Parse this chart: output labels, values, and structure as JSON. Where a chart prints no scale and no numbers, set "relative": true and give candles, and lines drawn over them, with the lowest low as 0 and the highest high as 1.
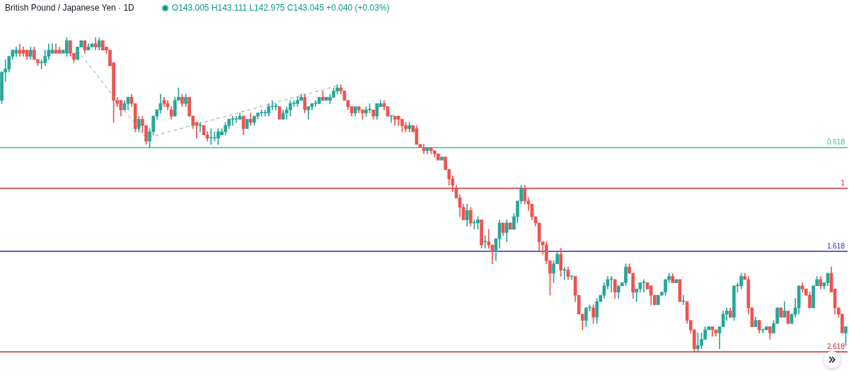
{
  "chart_data": {
    "type": "candlestick",
    "title": "British Pound / Japanese Yen · 1D",
    "subtitle": "O143.005 H143.111 L142.975 C143.045 +0.040 (+0.03%)",
    "relative": true,
    "categories": [
      null,
      null,
      null,
      null,
      null,
      null,
      null,
      null,
      null,
      null,
      null,
      null,
      null,
      null,
      null,
      null,
      null,
      null,
      null,
      null,
      null,
      null,
      null,
      null,
      null,
      null,
      null,
      null,
      null,
      null,
      null,
      null,
      null,
      null,
      null,
      null,
      null,
      null,
      null,
      null,
      null,
      null,
      null,
      null,
      null,
      null,
      null,
      null,
      null,
      null,
      null,
      null,
      null,
      null,
      null,
      null,
      null,
      null,
      null,
      null,
      null,
      null,
      null,
      null,
      null,
      null,
      null,
      null,
      null,
      null,
      null,
      null,
      null,
      null,
      null,
      null,
      null,
      null,
      null,
      null,
      null,
      null,
      null,
      null,
      null,
      null,
      null,
      null,
      null,
      null,
      null,
      null,
      null,
      null,
      null,
      null,
      null,
      null,
      null,
      null,
      null,
      null,
      null,
      null,
      null,
      null,
      null,
      null,
      null,
      null,
      null,
      null,
      null,
      null,
      null,
      null,
      null,
      null,
      null,
      null,
      null,
      null,
      null,
      null,
      null,
      null,
      null,
      null,
      null,
      null,
      null,
      null,
      null,
      null,
      null,
      null,
      null,
      null,
      null,
      null,
      null,
      null,
      null,
      null,
      null,
      null,
      null,
      null,
      null,
      null,
      null,
      null,
      null,
      null,
      null,
      null,
      null,
      null,
      null,
      null,
      null,
      null,
      null,
      null,
      null,
      null,
      null,
      null,
      null,
      null,
      null,
      null,
      null,
      null,
      null,
      null,
      null,
      null,
      null,
      null,
      null,
      null,
      null,
      null,
      null,
      null,
      null,
      null,
      null,
      null,
      null,
      null,
      null,
      null,
      null,
      null,
      null,
      null,
      null,
      null,
      null,
      null,
      null,
      null,
      null,
      null,
      null,
      null,
      null,
      null,
      null,
      null,
      null,
      null,
      null,
      null,
      null,
      null,
      null,
      null,
      null,
      null,
      null,
      null,
      null,
      null,
      null,
      null,
      null,
      null,
      null,
      null,
      null,
      null,
      null
    ],
    "ohlc": [
      [
        0.8,
        0.89,
        0.79,
        0.89
      ],
      [
        0.89,
        0.93,
        0.86,
        0.9
      ],
      [
        0.9,
        0.94,
        0.89,
        0.94
      ],
      [
        0.94,
        0.96,
        0.93,
        0.96
      ],
      [
        0.95,
        0.97,
        0.94,
        0.96
      ],
      [
        0.96,
        0.98,
        0.94,
        0.95
      ],
      [
        0.96,
        0.97,
        0.94,
        0.95
      ],
      [
        0.96,
        0.96,
        0.93,
        0.94
      ],
      [
        0.94,
        0.97,
        0.93,
        0.96
      ],
      [
        0.96,
        0.97,
        0.93,
        0.93
      ],
      [
        0.93,
        0.93,
        0.91,
        0.92
      ],
      [
        0.92,
        0.93,
        0.9,
        0.92
      ],
      [
        0.92,
        0.96,
        0.91,
        0.94
      ],
      [
        0.94,
        0.98,
        0.93,
        0.96
      ],
      [
        0.95,
        0.98,
        0.95,
        0.96
      ],
      [
        0.96,
        0.98,
        0.95,
        0.95
      ],
      [
        0.96,
        0.97,
        0.95,
        0.95
      ],
      [
        0.95,
        0.96,
        0.95,
        0.96
      ],
      [
        0.95,
        1,
        0.94,
        0.99
      ],
      [
        0.99,
        0.99,
        0.94,
        0.95
      ],
      [
        0.95,
        0.95,
        0.92,
        0.93
      ],
      [
        0.93,
        0.97,
        0.93,
        0.97
      ],
      [
        0.97,
        0.99,
        0.97,
        0.99
      ],
      [
        0.99,
        0.99,
        0.95,
        0.96
      ],
      [
        0.96,
        0.98,
        0.96,
        0.97
      ],
      [
        0.97,
        0.98,
        0.97,
        0.98
      ],
      [
        0.98,
        1,
        0.96,
        0.97
      ],
      [
        0.97,
        1,
        0.96,
        0.99
      ],
      [
        0.99,
        0.99,
        0.96,
        0.96
      ],
      [
        0.97,
        0.97,
        0.95,
        0.96
      ],
      [
        0.96,
        0.96,
        0.91,
        0.91
      ],
      [
        0.92,
        0.92,
        0.73,
        0.8
      ],
      [
        0.8,
        0.81,
        0.78,
        0.79
      ],
      [
        0.8,
        0.8,
        0.75,
        0.77
      ],
      [
        0.77,
        0.8,
        0.77,
        0.79
      ],
      [
        0.79,
        0.81,
        0.77,
        0.81
      ],
      [
        0.81,
        0.82,
        0.78,
        0.79
      ],
      [
        0.79,
        0.79,
        0.7,
        0.71
      ],
      [
        0.71,
        0.75,
        0.7,
        0.74
      ],
      [
        0.74,
        0.75,
        0.7,
        0.72
      ],
      [
        0.72,
        0.72,
        0.66,
        0.67
      ],
      [
        0.67,
        0.71,
        0.65,
        0.7
      ],
      [
        0.7,
        0.75,
        0.69,
        0.75
      ],
      [
        0.75,
        0.77,
        0.74,
        0.77
      ],
      [
        0.77,
        0.82,
        0.76,
        0.79
      ],
      [
        0.8,
        0.81,
        0.78,
        0.79
      ],
      [
        0.79,
        0.8,
        0.77,
        0.78
      ],
      [
        0.77,
        0.78,
        0.74,
        0.75
      ],
      [
        0.75,
        0.81,
        0.75,
        0.8
      ],
      [
        0.8,
        0.84,
        0.8,
        0.81
      ],
      [
        0.81,
        0.82,
        0.78,
        0.79
      ],
      [
        0.79,
        0.82,
        0.78,
        0.81
      ],
      [
        0.81,
        0.81,
        0.75,
        0.75
      ],
      [
        0.75,
        0.75,
        0.71,
        0.72
      ],
      [
        0.73,
        0.73,
        0.68,
        0.72
      ],
      [
        0.72,
        0.73,
        0.7,
        0.72
      ],
      [
        0.72,
        0.72,
        0.69,
        0.69
      ],
      [
        0.69,
        0.7,
        0.67,
        0.68
      ],
      [
        0.68,
        0.71,
        0.66,
        0.68
      ],
      [
        0.68,
        0.7,
        0.67,
        0.68
      ],
      [
        0.68,
        0.71,
        0.66,
        0.7
      ],
      [
        0.69,
        0.71,
        0.69,
        0.7
      ],
      [
        0.7,
        0.73,
        0.69,
        0.72
      ],
      [
        0.72,
        0.74,
        0.71,
        0.74
      ],
      [
        0.74,
        0.75,
        0.72,
        0.74
      ],
      [
        0.74,
        0.75,
        0.73,
        0.74
      ],
      [
        0.74,
        0.76,
        0.74,
        0.75
      ],
      [
        0.75,
        0.75,
        0.69,
        0.71
      ],
      [
        0.71,
        0.74,
        0.71,
        0.74
      ],
      [
        0.74,
        0.76,
        0.72,
        0.73
      ],
      [
        0.73,
        0.75,
        0.72,
        0.75
      ],
      [
        0.75,
        0.76,
        0.74,
        0.76
      ],
      [
        0.76,
        0.77,
        0.75,
        0.76
      ],
      [
        0.76,
        0.77,
        0.75,
        0.76
      ],
      [
        0.76,
        0.79,
        0.75,
        0.78
      ],
      [
        0.78,
        0.8,
        0.77,
        0.78
      ],
      [
        0.78,
        0.79,
        0.77,
        0.78
      ],
      [
        0.78,
        0.78,
        0.74,
        0.74
      ],
      [
        0.74,
        0.77,
        0.74,
        0.76
      ],
      [
        0.76,
        0.78,
        0.74,
        0.77
      ],
      [
        0.77,
        0.8,
        0.75,
        0.79
      ],
      [
        0.79,
        0.8,
        0.78,
        0.79
      ],
      [
        0.79,
        0.81,
        0.78,
        0.8
      ],
      [
        0.8,
        0.82,
        0.8,
        0.81
      ],
      [
        0.81,
        0.82,
        0.76,
        0.77
      ],
      [
        0.77,
        0.78,
        0.74,
        0.78
      ],
      [
        0.78,
        0.79,
        0.77,
        0.79
      ],
      [
        0.79,
        0.8,
        0.78,
        0.79
      ],
      [
        0.79,
        0.81,
        0.79,
        0.81
      ],
      [
        0.81,
        0.83,
        0.8,
        0.8
      ],
      [
        0.8,
        0.81,
        0.8,
        0.81
      ],
      [
        0.8,
        0.82,
        0.79,
        0.81
      ],
      [
        0.81,
        0.84,
        0.81,
        0.83
      ],
      [
        0.83,
        0.85,
        0.82,
        0.84
      ],
      [
        0.84,
        0.85,
        0.82,
        0.83
      ],
      [
        0.83,
        0.83,
        0.8,
        0.8
      ],
      [
        0.8,
        0.8,
        0.77,
        0.78
      ],
      [
        0.78,
        0.78,
        0.75,
        0.76
      ],
      [
        0.76,
        0.78,
        0.75,
        0.78
      ],
      [
        0.78,
        0.78,
        0.76,
        0.77
      ],
      [
        0.77,
        0.77,
        0.74,
        0.76
      ],
      [
        0.76,
        0.78,
        0.75,
        0.77
      ],
      [
        0.77,
        0.79,
        0.76,
        0.77
      ],
      [
        0.77,
        0.77,
        0.74,
        0.75
      ],
      [
        0.75,
        0.79,
        0.74,
        0.79
      ],
      [
        0.78,
        0.8,
        0.78,
        0.79
      ],
      [
        0.79,
        0.8,
        0.77,
        0.78
      ],
      [
        0.78,
        0.78,
        0.75,
        0.75
      ],
      [
        0.75,
        0.75,
        0.73,
        0.75
      ],
      [
        0.75,
        0.75,
        0.72,
        0.74
      ],
      [
        0.75,
        0.75,
        0.72,
        0.74
      ],
      [
        0.74,
        0.74,
        0.7,
        0.72
      ],
      [
        0.72,
        0.73,
        0.7,
        0.71
      ],
      [
        0.71,
        0.73,
        0.7,
        0.72
      ],
      [
        0.72,
        0.72,
        0.7,
        0.7
      ],
      [
        0.71,
        0.72,
        0.66,
        0.66
      ],
      [
        0.66,
        0.66,
        0.65,
        0.65
      ],
      [
        0.65,
        0.66,
        0.63,
        0.64
      ],
      [
        0.64,
        0.65,
        0.63,
        0.65
      ],
      [
        0.65,
        0.65,
        0.63,
        0.64
      ],
      [
        0.64,
        0.64,
        0.62,
        0.63
      ],
      [
        0.63,
        0.63,
        0.61,
        0.61
      ],
      [
        0.61,
        0.62,
        0.61,
        0.62
      ],
      [
        0.62,
        0.62,
        0.58,
        0.58
      ],
      [
        0.58,
        0.58,
        0.53,
        0.55
      ],
      [
        0.55,
        0.56,
        0.51,
        0.53
      ],
      [
        0.52,
        0.53,
        0.49,
        0.49
      ],
      [
        0.49,
        0.5,
        0.43,
        0.46
      ],
      [
        0.46,
        0.47,
        0.42,
        0.42
      ],
      [
        0.42,
        0.47,
        0.4,
        0.45
      ],
      [
        0.45,
        0.46,
        0.4,
        0.41
      ],
      [
        0.41,
        0.42,
        0.39,
        0.41
      ],
      [
        0.41,
        0.43,
        0.39,
        0.42
      ],
      [
        0.42,
        0.42,
        0.33,
        0.34
      ],
      [
        0.35,
        0.37,
        0.33,
        0.35
      ],
      [
        0.35,
        0.39,
        0.33,
        0.34
      ],
      [
        0.34,
        0.34,
        0.28,
        0.32
      ],
      [
        0.32,
        0.36,
        0.29,
        0.36
      ],
      [
        0.36,
        0.42,
        0.33,
        0.41
      ],
      [
        0.41,
        0.41,
        0.37,
        0.38
      ],
      [
        0.38,
        0.42,
        0.35,
        0.41
      ],
      [
        0.41,
        0.41,
        0.39,
        0.39
      ],
      [
        0.39,
        0.44,
        0.39,
        0.43
      ],
      [
        0.43,
        0.48,
        0.41,
        0.48
      ],
      [
        0.48,
        0.53,
        0.47,
        0.52
      ],
      [
        0.52,
        0.53,
        0.47,
        0.48
      ],
      [
        0.48,
        0.49,
        0.45,
        0.47
      ],
      [
        0.47,
        0.47,
        0.42,
        0.43
      ],
      [
        0.43,
        0.43,
        0.4,
        0.41
      ],
      [
        0.41,
        0.41,
        0.32,
        0.35
      ],
      [
        0.35,
        0.35,
        0.31,
        0.34
      ],
      [
        0.34,
        0.35,
        0.28,
        0.29
      ],
      [
        0.29,
        0.29,
        0.18,
        0.25
      ],
      [
        0.25,
        0.29,
        0.22,
        0.28
      ],
      [
        0.28,
        0.32,
        0.28,
        0.31
      ],
      [
        0.31,
        0.33,
        0.24,
        0.26
      ],
      [
        0.26,
        0.27,
        0.23,
        0.26
      ],
      [
        0.26,
        0.27,
        0.23,
        0.24
      ],
      [
        0.24,
        0.24,
        0.23,
        0.24
      ],
      [
        0.24,
        0.24,
        0.16,
        0.18
      ],
      [
        0.18,
        0.18,
        0.12,
        0.12
      ],
      [
        0.12,
        0.12,
        0.07,
        0.1
      ],
      [
        0.1,
        0.14,
        0.08,
        0.14
      ],
      [
        0.14,
        0.15,
        0.13,
        0.14
      ],
      [
        0.14,
        0.15,
        0.09,
        0.11
      ],
      [
        0.11,
        0.17,
        0.09,
        0.16
      ],
      [
        0.16,
        0.18,
        0.16,
        0.18
      ],
      [
        0.18,
        0.22,
        0.17,
        0.21
      ],
      [
        0.21,
        0.24,
        0.2,
        0.23
      ],
      [
        0.23,
        0.24,
        0.19,
        0.23
      ],
      [
        0.23,
        0.23,
        0.17,
        0.19
      ],
      [
        0.19,
        0.21,
        0.17,
        0.21
      ],
      [
        0.21,
        0.22,
        0.21,
        0.22
      ],
      [
        0.22,
        0.28,
        0.21,
        0.27
      ],
      [
        0.27,
        0.28,
        0.25,
        0.25
      ],
      [
        0.25,
        0.25,
        0.17,
        0.19
      ],
      [
        0.19,
        0.2,
        0.16,
        0.2
      ],
      [
        0.2,
        0.22,
        0.19,
        0.22
      ],
      [
        0.22,
        0.23,
        0.19,
        0.22
      ],
      [
        0.22,
        0.22,
        0.2,
        0.2
      ],
      [
        0.21,
        0.21,
        0.15,
        0.18
      ],
      [
        0.18,
        0.18,
        0.15,
        0.15
      ],
      [
        0.15,
        0.18,
        0.15,
        0.18
      ],
      [
        0.18,
        0.19,
        0.18,
        0.19
      ],
      [
        0.19,
        0.23,
        0.18,
        0.23
      ],
      [
        0.23,
        0.25,
        0.22,
        0.24
      ],
      [
        0.24,
        0.25,
        0.22,
        0.22
      ],
      [
        0.22,
        0.23,
        0.22,
        0.23
      ],
      [
        0.23,
        0.23,
        0.16,
        0.16
      ],
      [
        0.16,
        0.18,
        0.15,
        0.16
      ],
      [
        0.16,
        0.16,
        0.09,
        0.1
      ],
      [
        0.1,
        0.1,
        0.06,
        0.07
      ],
      [
        0.07,
        0.07,
        0,
        0.01
      ],
      [
        0.01,
        0.06,
        0,
        0.02
      ],
      [
        0.02,
        0.06,
        0.01,
        0.04
      ],
      [
        0.04,
        0.08,
        0.04,
        0.07
      ],
      [
        0.07,
        0.08,
        0.07,
        0.08
      ],
      [
        0.08,
        0.08,
        0.05,
        0.07
      ],
      [
        0.07,
        0.07,
        0.05,
        0.06
      ],
      [
        0.06,
        0.08,
        0.01,
        0.08
      ],
      [
        0.08,
        0.13,
        0.08,
        0.12
      ],
      [
        0.12,
        0.14,
        0.1,
        0.13
      ],
      [
        0.13,
        0.14,
        0.11,
        0.11
      ],
      [
        0.11,
        0.21,
        0.1,
        0.21
      ],
      [
        0.21,
        0.22,
        0.19,
        0.21
      ],
      [
        0.21,
        0.25,
        0.2,
        0.24
      ],
      [
        0.24,
        0.25,
        0.23,
        0.23
      ],
      [
        0.23,
        0.24,
        0.12,
        0.14
      ],
      [
        0.14,
        0.14,
        0.08,
        0.08
      ],
      [
        0.08,
        0.11,
        0.08,
        0.1
      ],
      [
        0.1,
        0.1,
        0.06,
        0.07
      ],
      [
        0.07,
        0.07,
        0.06,
        0.07
      ],
      [
        0.07,
        0.08,
        0.07,
        0.08
      ],
      [
        0.08,
        0.08,
        0.04,
        0.06
      ],
      [
        0.06,
        0.1,
        0.06,
        0.09
      ],
      [
        0.09,
        0.14,
        0.09,
        0.14
      ],
      [
        0.14,
        0.14,
        0.11,
        0.11
      ],
      [
        0.11,
        0.16,
        0.11,
        0.13
      ],
      [
        0.13,
        0.13,
        0.09,
        0.09
      ],
      [
        0.09,
        0.12,
        0.09,
        0.12
      ],
      [
        0.12,
        0.17,
        0.11,
        0.14
      ],
      [
        0.14,
        0.21,
        0.12,
        0.21
      ],
      [
        0.21,
        0.22,
        0.19,
        0.2
      ],
      [
        0.2,
        0.2,
        0.18,
        0.18
      ],
      [
        0.18,
        0.19,
        0.14,
        0.14
      ],
      [
        0.14,
        0.21,
        0.14,
        0.21
      ],
      [
        0.21,
        0.24,
        0.21,
        0.23
      ],
      [
        0.23,
        0.24,
        0.2,
        0.21
      ],
      [
        0.21,
        0.22,
        0.2,
        0.22
      ],
      [
        0.22,
        0.25,
        0.21,
        0.25
      ],
      [
        0.25,
        0.27,
        0.19,
        0.19
      ],
      [
        0.2,
        0.2,
        0.12,
        0.14
      ],
      [
        0.14,
        0.14,
        0.11,
        0.12
      ],
      [
        0.12,
        0.12,
        0.06,
        0.06
      ],
      [
        0.06,
        0.08,
        0.02,
        0.08
      ]
    ],
    "series": [
      {
        "type": "line",
        "color": "#9e9e9e",
        "line_style": "dashed",
        "marker": "none",
        "values": [
          null,
          null,
          null,
          null,
          null,
          null,
          null,
          null,
          null,
          null,
          null,
          null,
          null,
          null,
          null,
          null,
          null,
          null,
          null,
          null,
          null,
          0.96,
          null,
          null,
          null,
          null,
          null,
          null,
          null,
          null,
          null,
          null,
          null,
          null,
          null,
          null,
          null,
          null,
          null,
          null,
          0.68,
          null,
          null,
          null,
          null,
          null,
          null,
          null,
          null,
          null,
          null,
          null,
          null,
          null,
          null,
          null,
          null,
          null,
          null,
          null,
          null,
          null,
          null,
          null,
          null,
          null,
          null,
          null,
          null,
          null,
          null,
          null,
          null,
          null,
          null,
          null,
          null,
          null,
          null,
          null,
          null,
          null,
          null,
          null,
          null,
          null,
          null,
          null,
          null,
          null,
          null,
          null,
          null,
          null,
          0.85,
          null,
          null,
          null,
          null,
          null,
          null,
          null,
          null,
          null,
          null,
          null,
          null,
          null,
          null,
          null,
          null,
          null,
          null,
          null,
          null,
          null,
          null,
          null,
          null,
          null,
          null,
          null,
          null,
          null,
          null,
          null,
          null,
          null,
          null,
          null,
          null,
          null,
          null,
          null,
          null,
          null,
          null,
          null,
          null,
          null,
          null,
          null,
          null,
          null,
          null,
          null,
          null,
          null,
          null,
          null,
          null,
          null,
          null,
          null,
          null,
          null,
          null,
          null,
          null,
          null,
          null,
          null,
          null,
          null,
          null,
          null,
          null,
          null,
          null,
          null,
          null,
          null,
          null,
          null,
          null,
          null,
          null,
          null,
          null,
          null,
          null,
          null,
          null,
          null,
          null,
          null,
          null,
          null,
          null,
          null,
          null,
          null,
          null,
          null,
          null,
          null,
          null,
          null,
          null,
          null,
          null,
          null,
          null,
          null,
          null,
          null,
          null,
          null,
          null,
          null,
          null,
          null,
          null,
          null,
          null,
          null,
          null,
          null,
          null,
          null,
          null,
          null,
          null,
          null,
          null,
          null,
          null,
          null,
          null,
          null,
          null,
          null,
          null,
          null,
          null
        ]
      }
    ],
    "ref_lines": [
      {
        "axis": "y",
        "value": 0.65,
        "color": "#2ec79a"
      },
      {
        "axis": "y",
        "value": 0.52,
        "color": "#d32f2f"
      },
      {
        "axis": "y",
        "value": 0.32,
        "color": "#2b2bbf"
      },
      {
        "axis": "y",
        "value": 0,
        "color": "#c62828"
      }
    ],
    "annotations": [
      {
        "text": "0.618",
        "y": 0.65
      },
      {
        "text": "1",
        "y": 0.52
      },
      {
        "text": "1.618",
        "y": 0.32
      },
      {
        "text": "2.618",
        "y": 0
      }
    ]
  }
}
